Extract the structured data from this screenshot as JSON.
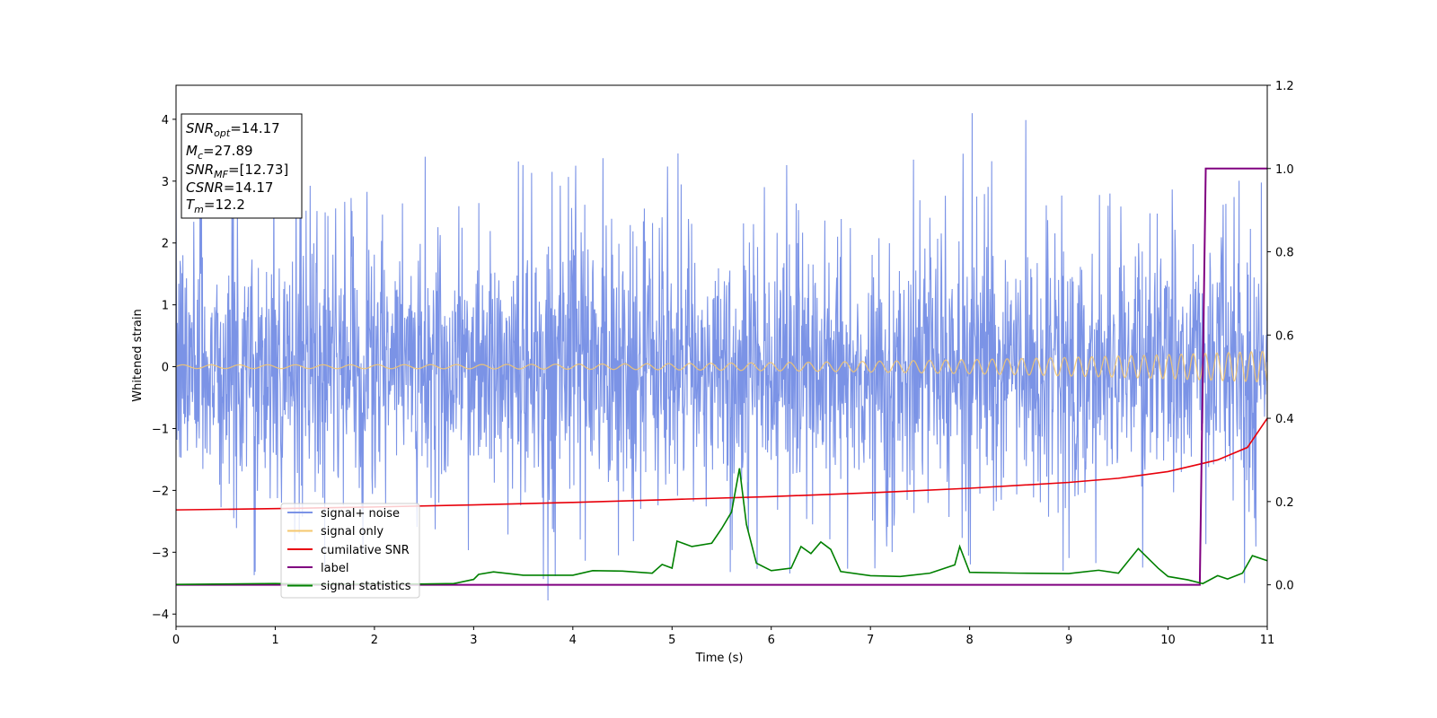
{
  "chart_data": {
    "type": "line",
    "xlabel": "Time (s)",
    "ylabel": "Whitened strain",
    "xlim": [
      0,
      11
    ],
    "ylim": [
      -4.2,
      4.55
    ],
    "y2lim": [
      -0.1,
      1.2
    ],
    "xticks": [
      "0",
      "1",
      "2",
      "3",
      "4",
      "5",
      "6",
      "7",
      "8",
      "9",
      "10",
      "11"
    ],
    "yticks": [
      "−4",
      "−3",
      "−2",
      "−1",
      "0",
      "1",
      "2",
      "3",
      "4"
    ],
    "y2ticks": [
      "0.0",
      "0.2",
      "0.4",
      "0.6",
      "0.8",
      "1.0",
      "1.2"
    ],
    "grid": false,
    "legend_position": "lower-left",
    "info_box": {
      "snr_opt_label": "SNR",
      "snr_opt_sub": "opt",
      "snr_opt_value": "=14.17",
      "mc_label": "M",
      "mc_sub": "c",
      "mc_value": "=27.89",
      "snr_mf_label": "SNR",
      "snr_mf_sub": "MF",
      "snr_mf_value": "=[12.73]",
      "csnr_label": "CSNR",
      "csnr_value": "=14.17",
      "tm_label": "T",
      "tm_sub": "m",
      "tm_value": "=12.2"
    },
    "series": [
      {
        "name": "signal+ noise",
        "axis": "left",
        "color": "#7b93e6",
        "description_values": "dense noise, approx. ±1.8 typical, peaks to about +4.2 and −3.8",
        "amplitude": 1.9,
        "peak_max": 4.15,
        "peak_min": -3.78
      },
      {
        "name": "signal only",
        "axis": "left",
        "color": "#f5c76e",
        "oscillation_amplitude_start": 0.03,
        "oscillation_amplitude_end": 0.25,
        "frequency_start_hz": 3.5,
        "frequency_end_hz": 9
      },
      {
        "name": "cumilative SNR",
        "axis": "right",
        "color": "#e8000b",
        "x": [
          0,
          1,
          2,
          3,
          4,
          5,
          6,
          7,
          8,
          9,
          9.5,
          10,
          10.5,
          10.8,
          11
        ],
        "values": [
          0.18,
          0.183,
          0.187,
          0.192,
          0.198,
          0.205,
          0.212,
          0.221,
          0.232,
          0.246,
          0.256,
          0.272,
          0.3,
          0.33,
          0.4
        ]
      },
      {
        "name": "label",
        "axis": "right",
        "color": "#800080",
        "x": [
          0,
          10.32,
          10.38,
          11
        ],
        "values": [
          0,
          0,
          1,
          1
        ]
      },
      {
        "name": "signal statistics",
        "axis": "right",
        "color": "#008000",
        "x": [
          0,
          0.5,
          1,
          1.5,
          2,
          2.5,
          2.8,
          3,
          3.05,
          3.2,
          3.5,
          4,
          4.2,
          4.5,
          4.8,
          4.9,
          5,
          5.05,
          5.2,
          5.4,
          5.5,
          5.6,
          5.68,
          5.75,
          5.85,
          6,
          6.2,
          6.3,
          6.4,
          6.5,
          6.6,
          6.7,
          7,
          7.3,
          7.6,
          7.85,
          7.9,
          8,
          8.5,
          9,
          9.3,
          9.5,
          9.7,
          9.9,
          10,
          10.2,
          10.35,
          10.5,
          10.6,
          10.75,
          10.85,
          11
        ],
        "values": [
          0.001,
          0.002,
          0.003,
          0.001,
          0.002,
          0.002,
          0.003,
          0.013,
          0.025,
          0.031,
          0.023,
          0.023,
          0.034,
          0.033,
          0.028,
          0.049,
          0.04,
          0.105,
          0.092,
          0.1,
          0.135,
          0.175,
          0.28,
          0.145,
          0.052,
          0.034,
          0.04,
          0.092,
          0.075,
          0.103,
          0.085,
          0.032,
          0.022,
          0.02,
          0.028,
          0.048,
          0.092,
          0.03,
          0.028,
          0.027,
          0.035,
          0.028,
          0.087,
          0.04,
          0.02,
          0.012,
          0.003,
          0.022,
          0.014,
          0.028,
          0.07,
          0.058
        ]
      }
    ]
  }
}
